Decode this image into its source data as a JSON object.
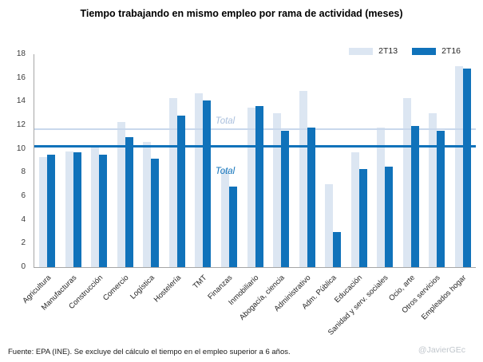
{
  "title": "Tiempo trabajando en mismo empleo por rama de actividad (meses)",
  "chart_data": {
    "type": "bar",
    "title": "Tiempo trabajando en mismo empleo por rama de actividad (meses)",
    "categories": [
      "Agricultura",
      "Manufacturas",
      "Construcción",
      "Comercio",
      "Logística",
      "Hostelería",
      "TMT",
      "Finanzas",
      "Inmobiliario",
      "Abogacía, ciencia",
      "Administrativo",
      "Adm. Pública",
      "Educación",
      "Sanidad y serv. sociales",
      "Ocio, arte",
      "Otros servicios",
      "Empleados hogar"
    ],
    "series": [
      {
        "name": "2T13",
        "color": "#dce6f2",
        "values": [
          9.3,
          9.8,
          10.3,
          12.3,
          10.6,
          14.3,
          14.7,
          8.2,
          13.5,
          13.0,
          14.9,
          7.0,
          9.7,
          11.8,
          14.3,
          13.0,
          17.0
        ]
      },
      {
        "name": "2T16",
        "color": "#1072ba",
        "values": [
          9.5,
          9.7,
          9.5,
          11.0,
          9.2,
          12.8,
          14.1,
          6.8,
          13.6,
          11.5,
          11.8,
          3.0,
          8.3,
          8.5,
          11.9,
          11.5,
          16.8
        ]
      }
    ],
    "reference_lines": [
      {
        "label": "Total",
        "series": "2T13",
        "value": 11.6,
        "color": "#c9d8ec"
      },
      {
        "label": "Total",
        "series": "2T16",
        "value": 10.1,
        "color": "#1072ba"
      }
    ],
    "ylim": [
      0,
      18
    ],
    "ytick_step": 2,
    "grid": false,
    "legend_position": "top-right",
    "xlabel": "",
    "ylabel": ""
  },
  "footer": {
    "source": "Fuente: EPA (INE).  Se excluye del cálculo el tiempo en el empleo superior a 6 años.",
    "credit": "@JavierGEc"
  }
}
